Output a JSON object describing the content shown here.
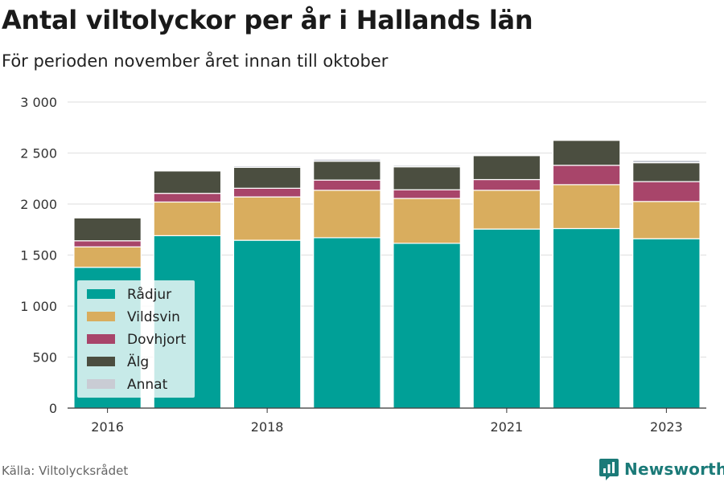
{
  "title": "Antal viltolyckor per år i Hallands län",
  "subtitle": "För perioden november året innan till oktober",
  "source": "Källa: Viltolycksrådet",
  "brand": {
    "name": "Newsworthy",
    "icon": "bar-chart-logo-icon"
  },
  "colors": {
    "radjur": "#00a097",
    "vildsvin": "#d9ad5e",
    "dovhjort": "#a8456a",
    "alg": "#4b4e40",
    "annat": "#c9ccd4",
    "grid": "#e3e3e3",
    "brand": "#1b7a78"
  },
  "chart_data": {
    "type": "bar",
    "stacked": true,
    "categories": [
      "2016",
      "2017",
      "2018",
      "2019",
      "2020",
      "2021",
      "2022",
      "2023"
    ],
    "x_tick_labels": [
      "2016",
      "",
      "2018",
      "",
      "",
      "2021",
      "",
      "2023"
    ],
    "ylim": [
      0,
      3000
    ],
    "y_ticks": [
      0,
      500,
      1000,
      1500,
      2000,
      2500,
      3000
    ],
    "y_tick_labels": [
      "0",
      "500",
      "1 000",
      "1 500",
      "2 000",
      "2 500",
      "3 000"
    ],
    "grid": true,
    "legend_position": "bottom-left",
    "series": [
      {
        "name": "Rådjur",
        "color": "#00a097",
        "values": [
          1380,
          1690,
          1645,
          1670,
          1615,
          1755,
          1760,
          1660
        ]
      },
      {
        "name": "Vildsvin",
        "color": "#d9ad5e",
        "values": [
          200,
          330,
          425,
          465,
          440,
          380,
          430,
          365
        ]
      },
      {
        "name": "Dovhjort",
        "color": "#a8456a",
        "values": [
          60,
          85,
          85,
          100,
          85,
          105,
          190,
          195
        ]
      },
      {
        "name": "Älg",
        "color": "#4b4e40",
        "values": [
          225,
          220,
          205,
          185,
          225,
          235,
          245,
          185
        ]
      },
      {
        "name": "Annat",
        "color": "#c9ccd4",
        "values": [
          5,
          10,
          15,
          20,
          15,
          10,
          10,
          25
        ]
      }
    ]
  }
}
